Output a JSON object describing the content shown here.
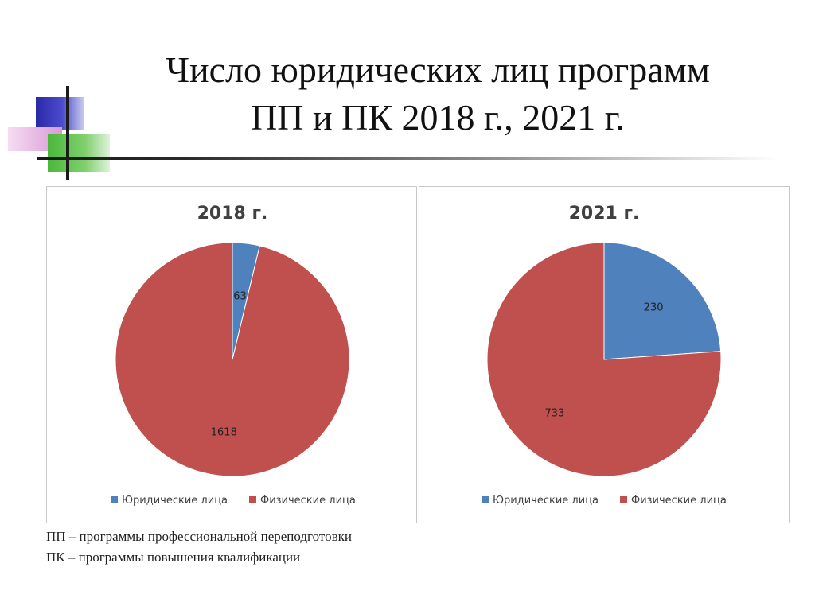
{
  "slide": {
    "title_line1": "Число юридических лиц программ",
    "title_line2": "ПП и ПК 2018 г., 2021 г."
  },
  "footnotes": [
    "ПП – программы профессиональной переподготовки",
    "ПК – программы повышения квалификации"
  ],
  "colors": {
    "legal_entities": "#4f81bd",
    "individuals": "#c0504d"
  },
  "chart_data": [
    {
      "type": "pie",
      "title": "2018 г.",
      "series": [
        {
          "name": "Юридические лица",
          "value": 63,
          "color": "#4f81bd"
        },
        {
          "name": "Физические лица",
          "value": 1618,
          "color": "#c0504d"
        }
      ],
      "start_angle": "12 o'clock",
      "direction": "clockwise",
      "legend": "bottom"
    },
    {
      "type": "pie",
      "title": "2021 г.",
      "series": [
        {
          "name": "Юридические лица",
          "value": 230,
          "color": "#4f81bd"
        },
        {
          "name": "Физические лица",
          "value": 733,
          "color": "#c0504d"
        }
      ],
      "start_angle": "12 o'clock",
      "direction": "clockwise",
      "legend": "bottom"
    }
  ]
}
